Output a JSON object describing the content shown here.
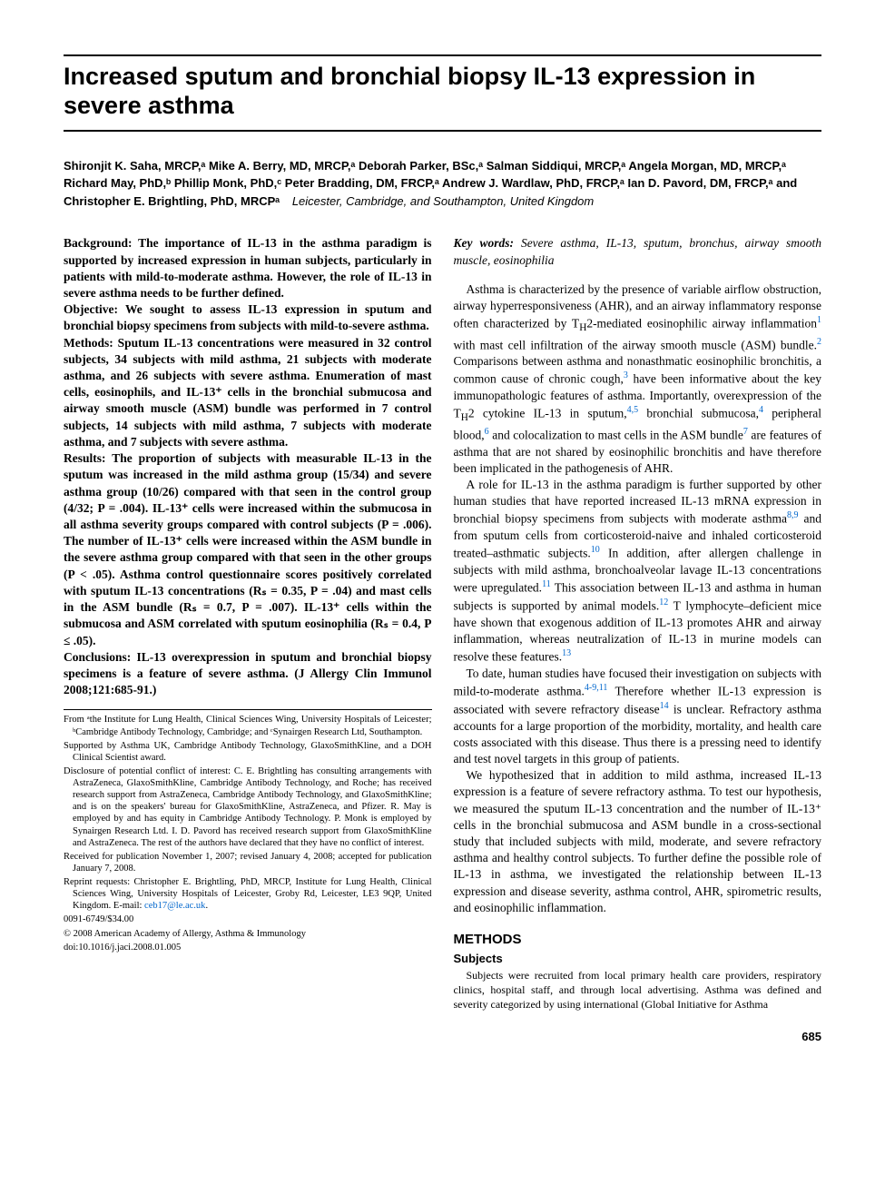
{
  "title": "Increased sputum and bronchial biopsy IL-13 expression in severe asthma",
  "authors_line1": "Shironjit K. Saha, MRCP,ᵃ Mike A. Berry, MD, MRCP,ᵃ Deborah Parker, BSc,ᵃ Salman Siddiqui, MRCP,ᵃ Angela Morgan, MD, MRCP,ᵃ Richard May, PhD,ᵇ Phillip Monk, PhD,ᶜ Peter Bradding, DM, FRCP,ᵃ Andrew J. Wardlaw, PhD, FRCP,ᵃ Ian D. Pavord, DM, FRCP,ᵃ and Christopher E. Brightling, PhD, MRCPᵃ",
  "location": "Leicester, Cambridge, and Southampton, United Kingdom",
  "abstract": {
    "background": "Background: The importance of IL-13 in the asthma paradigm is supported by increased expression in human subjects, particularly in patients with mild-to-moderate asthma. However, the role of IL-13 in severe asthma needs to be further defined.",
    "objective": "Objective: We sought to assess IL-13 expression in sputum and bronchial biopsy specimens from subjects with mild-to-severe asthma.",
    "methods": "Methods: Sputum IL-13 concentrations were measured in 32 control subjects, 34 subjects with mild asthma, 21 subjects with moderate asthma, and 26 subjects with severe asthma. Enumeration of mast cells, eosinophils, and IL-13⁺ cells in the bronchial submucosa and airway smooth muscle (ASM) bundle was performed in 7 control subjects, 14 subjects with mild asthma, 7 subjects with moderate asthma, and 7 subjects with severe asthma.",
    "results": "Results: The proportion of subjects with measurable IL-13 in the sputum was increased in the mild asthma group (15/34) and severe asthma group (10/26) compared with that seen in the control group (4/32; P = .004). IL-13⁺ cells were increased within the submucosa in all asthma severity groups compared with control subjects (P = .006). The number of IL-13⁺ cells were increased within the ASM bundle in the severe asthma group compared with that seen in the other groups (P < .05). Asthma control questionnaire scores positively correlated with sputum IL-13 concentrations (Rₛ = 0.35, P = .04) and mast cells in the ASM bundle (Rₛ = 0.7, P = .007). IL-13⁺ cells within the submucosa and ASM correlated with sputum eosinophilia (Rₛ = 0.4, P ≤ .05).",
    "conclusions": "Conclusions: IL-13 overexpression in sputum and bronchial biopsy specimens is a feature of severe asthma. (J Allergy Clin Immunol 2008;121:685-91.)"
  },
  "footnotes": {
    "from": "From ᵃthe Institute for Lung Health, Clinical Sciences Wing, University Hospitals of Leicester; ᵇCambridge Antibody Technology, Cambridge; and ᶜSynairgen Research Ltd, Southampton.",
    "supported": "Supported by Asthma UK, Cambridge Antibody Technology, GlaxoSmithKline, and a DOH Clinical Scientist award.",
    "disclosure": "Disclosure of potential conflict of interest: C. E. Brightling has consulting arrangements with AstraZeneca, GlaxoSmithKline, Cambridge Antibody Technology, and Roche; has received research support from AstraZeneca, Cambridge Antibody Technology, and GlaxoSmithKline; and is on the speakers' bureau for GlaxoSmithKline, AstraZeneca, and Pfizer. R. May is employed by and has equity in Cambridge Antibody Technology. P. Monk is employed by Synairgen Research Ltd. I. D. Pavord has received research support from GlaxoSmithKline and AstraZeneca. The rest of the authors have declared that they have no conflict of interest.",
    "received": "Received for publication November 1, 2007; revised January 4, 2008; accepted for publication January 7, 2008.",
    "reprint_pre": "Reprint requests: Christopher E. Brightling, PhD, MRCP, Institute for Lung Health, Clinical Sciences Wing, University Hospitals of Leicester, Groby Rd, Leicester, LE3 9QP, United Kingdom. E-mail: ",
    "reprint_email": "ceb17@le.ac.uk",
    "reprint_post": ".",
    "issn": "0091-6749/$34.00",
    "copyright": "© 2008 American Academy of Allergy, Asthma & Immunology",
    "doi": "doi:10.1016/j.jaci.2008.01.005"
  },
  "keywords_label": "Key words:",
  "keywords": " Severe asthma, IL-13, sputum, bronchus, airway smooth muscle, eosinophilia",
  "body": {
    "p1a": "Asthma is characterized by the presence of variable airflow obstruction, airway hyperresponsiveness (AHR), and an airway inflammatory response often characterized by T",
    "p1b": "2-mediated eosinophilic airway inflammation",
    "p1c": " with mast cell infiltration of the airway smooth muscle (ASM) bundle.",
    "p1d": " Comparisons between asthma and nonasthmatic eosinophilic bronchitis, a common cause of chronic cough,",
    "p1e": " have been informative about the key immunopathologic features of asthma. Importantly, overexpression of the T",
    "p1f": "2 cytokine IL-13 in sputum,",
    "p1g": " bronchial submucosa,",
    "p1h": " peripheral blood,",
    "p1i": " and colocalization to mast cells in the ASM bundle",
    "p1j": " are features of asthma that are not shared by eosinophilic bronchitis and have therefore been implicated in the pathogenesis of AHR.",
    "p2a": "A role for IL-13 in the asthma paradigm is further supported by other human studies that have reported increased IL-13 mRNA expression in bronchial biopsy specimens from subjects with moderate asthma",
    "p2b": " and from sputum cells from corticosteroid-naive and inhaled corticosteroid treated–asthmatic subjects.",
    "p2c": " In addition, after allergen challenge in subjects with mild asthma, bronchoalveolar lavage IL-13 concentrations were upregulated.",
    "p2d": " This association between IL-13 and asthma in human subjects is supported by animal models.",
    "p2e": " T lymphocyte–deficient mice have shown that exogenous addition of IL-13 promotes AHR and airway inflammation, whereas neutralization of IL-13 in murine models can resolve these features.",
    "p3a": "To date, human studies have focused their investigation on subjects with mild-to-moderate asthma.",
    "p3b": " Therefore whether IL-13 expression is associated with severe refractory disease",
    "p3c": " is unclear. Refractory asthma accounts for a large proportion of the morbidity, mortality, and health care costs associated with this disease. Thus there is a pressing need to identify and test novel targets in this group of patients.",
    "p4": "We hypothesized that in addition to mild asthma, increased IL-13 expression is a feature of severe refractory asthma. To test our hypothesis, we measured the sputum IL-13 concentration and the number of IL-13⁺ cells in the bronchial submucosa and ASM bundle in a cross-sectional study that included subjects with mild, moderate, and severe refractory asthma and healthy control subjects. To further define the possible role of IL-13 in asthma, we investigated the relationship between IL-13 expression and disease severity, asthma control, AHR, spirometric results, and eosinophilic inflammation."
  },
  "refs": {
    "r1": "1",
    "r2": "2",
    "r3": "3",
    "r45": "4,5",
    "r4": "4",
    "r6": "6",
    "r7": "7",
    "r89": "8,9",
    "r10": "10",
    "r11": "11",
    "r12": "12",
    "r13": "13",
    "r4911": "4-9,11",
    "r14": "14"
  },
  "methods": {
    "heading": "METHODS",
    "sub": "Subjects",
    "body": "Subjects were recruited from local primary health care providers, respiratory clinics, hospital staff, and through local advertising. Asthma was defined and severity categorized by using international (Global Initiative for Asthma"
  },
  "page_number": "685",
  "sub_H": "H"
}
